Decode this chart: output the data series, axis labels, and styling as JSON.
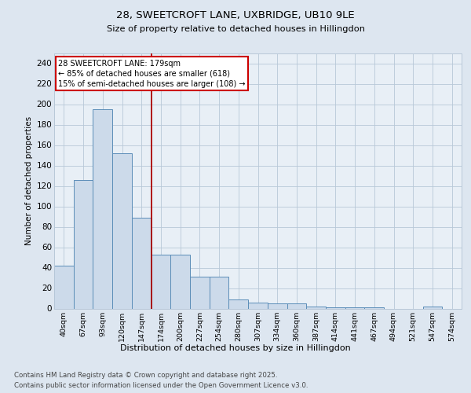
{
  "title_line1": "28, SWEETCROFT LANE, UXBRIDGE, UB10 9LE",
  "title_line2": "Size of property relative to detached houses in Hillingdon",
  "xlabel": "Distribution of detached houses by size in Hillingdon",
  "ylabel": "Number of detached properties",
  "annotation_title": "28 SWEETCROFT LANE: 179sqm",
  "annotation_line2": "← 85% of detached houses are smaller (618)",
  "annotation_line3": "15% of semi-detached houses are larger (108) →",
  "bar_color": "#ccdaea",
  "bar_edge_color": "#5b8db8",
  "vline_color": "#aa0000",
  "vline_x": 4.5,
  "bg_color": "#dde6f0",
  "plot_bg_color": "#e8eff6",
  "grid_color": "#b8c8d8",
  "footer_line1": "Contains HM Land Registry data © Crown copyright and database right 2025.",
  "footer_line2": "Contains public sector information licensed under the Open Government Licence v3.0.",
  "categories": [
    "40sqm",
    "67sqm",
    "93sqm",
    "120sqm",
    "147sqm",
    "174sqm",
    "200sqm",
    "227sqm",
    "254sqm",
    "280sqm",
    "307sqm",
    "334sqm",
    "360sqm",
    "387sqm",
    "414sqm",
    "441sqm",
    "467sqm",
    "494sqm",
    "521sqm",
    "547sqm",
    "574sqm"
  ],
  "values": [
    42,
    126,
    195,
    152,
    89,
    53,
    53,
    31,
    31,
    9,
    6,
    5,
    5,
    2,
    1,
    1,
    1,
    0,
    0,
    2,
    0
  ],
  "ylim": [
    0,
    250
  ],
  "yticks": [
    0,
    20,
    40,
    60,
    80,
    100,
    120,
    140,
    160,
    180,
    200,
    220,
    240
  ]
}
